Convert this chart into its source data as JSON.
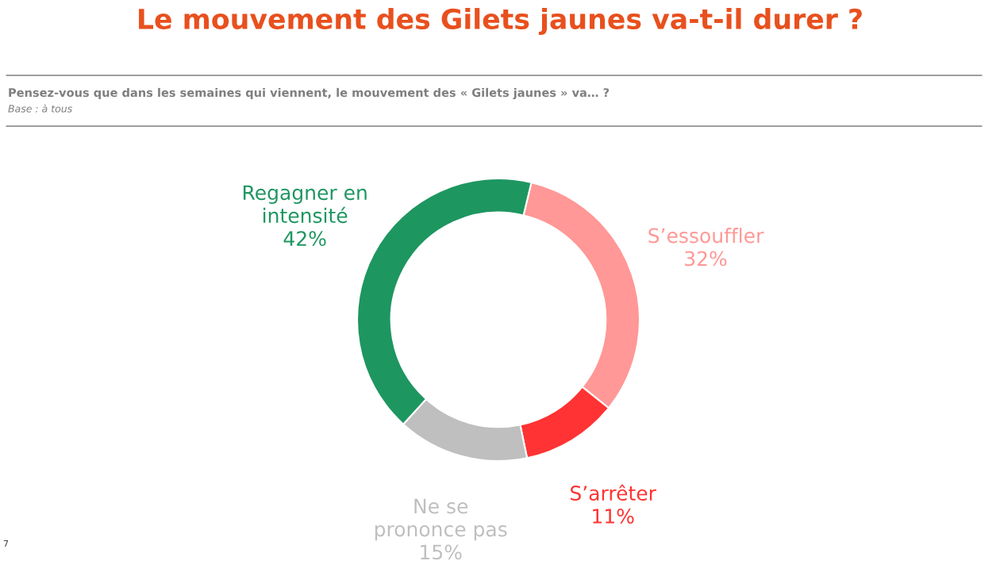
{
  "chart_data": {
    "type": "donut",
    "title": "Le mouvement des Gilets jaunes va-t-il durer ?",
    "subtitle": "Pensez-vous que dans les semaines qui viennent, le mouvement des « Gilets jaunes » va… ?",
    "annotations": [
      "Base : à tous",
      "7"
    ],
    "categories": [
      "S’essouffler",
      "S’arrêter",
      "Ne se\nprononce pas",
      "Regagner en\nintensité"
    ],
    "values": [
      32,
      11,
      15,
      42
    ],
    "value_labels": [
      "32%",
      "11%",
      "15%",
      "42%"
    ],
    "colors": [
      "#ff9896",
      "#ff3333",
      "#bfbfbf",
      "#1e9660"
    ],
    "legend": false
  }
}
